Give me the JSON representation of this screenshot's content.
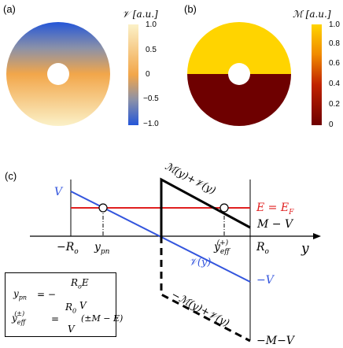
{
  "panel_a": {
    "label": "(a)",
    "colorbar_title": "𝒱 [a.u.]",
    "ticks": [
      "1.0",
      "0.5",
      "0",
      "−0.5",
      "−1.0"
    ],
    "colors": {
      "top": "#fbf1c8",
      "mid": "#f2a64a",
      "low": "#8b91a8",
      "bottom": "#2456d8"
    }
  },
  "panel_b": {
    "label": "(b)",
    "colorbar_title": "ℳ [a.u.]",
    "ticks": [
      "1.0",
      "0.8",
      "0.6",
      "0.4",
      "0.2",
      "0"
    ],
    "colors": {
      "top": "#ffd400",
      "bottom": "#6e0000"
    }
  },
  "panel_c": {
    "label": "(c)",
    "axis_labels": {
      "minus_Ro": "−R",
      "minus_Ro_sub": "o",
      "ypn": "y",
      "ypn_sub": "pn",
      "yeff": "y",
      "yeff_sub": "eff",
      "yeff_sup": "(+)",
      "Ro": "R",
      "Ro_sub": "o",
      "y_axis": "y"
    },
    "curve_labels": {
      "V_left": "V",
      "fermi": "E = E",
      "fermi_sub": "F",
      "M_plus_V": "ℳ(y)+𝒱(y)",
      "M_minus_V": "M − V",
      "V_of_y": "𝒱(y)",
      "minus_V": "−V",
      "minus_M_plus_V": "−ℳ(y)+𝒱(y)",
      "minus_M_minus_V": "−M−V"
    },
    "formulas": {
      "ypn_lhs": "y",
      "ypn_lhs_sub": "pn",
      "ypn_eq": "= −",
      "ypn_num": "R",
      "ypn_num_sub": "o",
      "ypn_num_tail": "E",
      "ypn_den": "V",
      "yeff_lhs": "y",
      "yeff_lhs_sub": "eff",
      "yeff_lhs_sup": "(±)",
      "yeff_eq": "=",
      "yeff_num": "R",
      "yeff_num_sub": "0",
      "yeff_den": "V",
      "yeff_tail": "(±M − E)"
    },
    "colors": {
      "fermi": "#e02020",
      "potential": "#3355dd",
      "mass": "#000000"
    }
  }
}
